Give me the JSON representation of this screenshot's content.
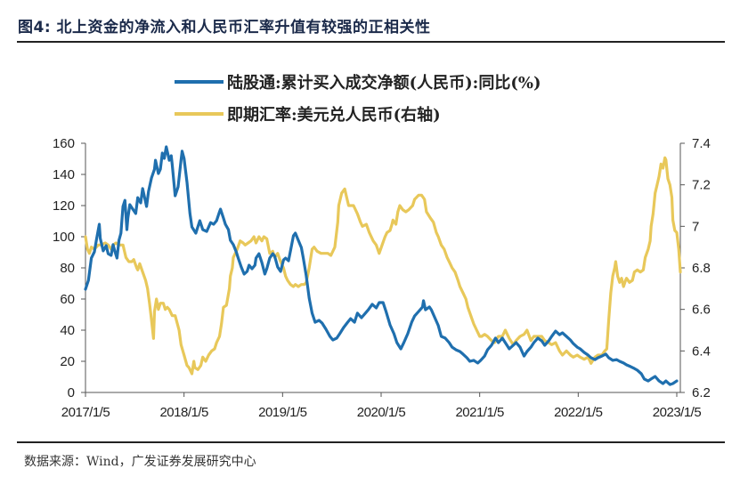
{
  "figure": {
    "title": "图4:  北上资金的净流入和人民币汇率升值有较强的正相关性",
    "source": "数据来源：Wind，广发证券发展研究中心"
  },
  "chart_data": {
    "type": "line",
    "title": "图4:  北上资金的净流入和人民币汇率升值有较强的正相关性",
    "xlabel": "",
    "ylabel": "",
    "x_tick_labels": [
      "2017/1/5",
      "2018/1/5",
      "2019/1/5",
      "2020/1/5",
      "2021/1/5",
      "2022/1/5",
      "2023/1/5"
    ],
    "x_tick_values": [
      2017,
      2018,
      2019,
      2020,
      2021,
      2022,
      2023
    ],
    "xlim": [
      2017,
      2023
    ],
    "y_left": {
      "ylim": [
        0,
        160
      ],
      "ticks": [
        "0",
        "20",
        "40",
        "60",
        "80",
        "100",
        "120",
        "140",
        "160"
      ],
      "tick_values": [
        0,
        20,
        40,
        60,
        80,
        100,
        120,
        140,
        160
      ]
    },
    "y_right": {
      "ylim": [
        6.2,
        7.4
      ],
      "ticks": [
        "6.2",
        "6.4",
        "6.6",
        "6.8",
        "7",
        "7.2",
        "7.4"
      ],
      "tick_values": [
        6.2,
        6.4,
        6.6,
        6.8,
        7.0,
        7.2,
        7.4
      ]
    },
    "grid": false,
    "legend_position": "top-center",
    "series": [
      {
        "name": "陆股通:累计买入成交净额(人民币):同比(%)",
        "axis": "left",
        "color": "#1f6fae",
        "x": [
          2017.0,
          2017.03,
          2017.06,
          2017.09,
          2017.11,
          2017.14,
          2017.15,
          2017.18,
          2017.21,
          2017.23,
          2017.26,
          2017.28,
          2017.3,
          2017.32,
          2017.34,
          2017.36,
          2017.38,
          2017.4,
          2017.42,
          2017.43,
          2017.45,
          2017.48,
          2017.51,
          2017.53,
          2017.56,
          2017.58,
          2017.6,
          2017.62,
          2017.64,
          2017.67,
          2017.7,
          2017.71,
          2017.74,
          2017.76,
          2017.78,
          2017.8,
          2017.82,
          2017.85,
          2017.87,
          2017.88,
          2017.91,
          2017.94,
          2017.97,
          2017.98,
          2018.0,
          2018.03,
          2018.06,
          2018.08,
          2018.12,
          2018.16,
          2018.19,
          2018.23,
          2018.27,
          2018.3,
          2018.33,
          2018.36,
          2018.37,
          2018.4,
          2018.42,
          2018.45,
          2018.47,
          2018.5,
          2018.53,
          2018.55,
          2018.58,
          2018.61,
          2018.64,
          2018.66,
          2018.69,
          2018.72,
          2018.73,
          2018.76,
          2018.79,
          2018.82,
          2018.84,
          2018.87,
          2018.9,
          2018.92,
          2018.95,
          2018.98,
          2019.01,
          2019.03,
          2019.06,
          2019.08,
          2019.11,
          2019.13,
          2019.16,
          2019.19,
          2019.21,
          2019.24,
          2019.27,
          2019.3,
          2019.33,
          2019.37,
          2019.4,
          2019.44,
          2019.48,
          2019.51,
          2019.55,
          2019.58,
          2019.62,
          2019.66,
          2019.69,
          2019.73,
          2019.76,
          2019.8,
          2019.84,
          2019.87,
          2019.91,
          2019.95,
          2019.98,
          2020.02,
          2020.05,
          2020.09,
          2020.13,
          2020.16,
          2020.2,
          2020.23,
          2020.27,
          2020.31,
          2020.34,
          2020.38,
          2020.42,
          2020.43,
          2020.45,
          2020.49,
          2020.51,
          2020.54,
          2020.58,
          2020.61,
          2020.65,
          2020.69,
          2020.72,
          2020.76,
          2020.8,
          2020.83,
          2020.87,
          2020.9,
          2020.94,
          2020.98,
          2021.01,
          2021.05,
          2021.08,
          2021.12,
          2021.16,
          2021.19,
          2021.23,
          2021.26,
          2021.3,
          2021.34,
          2021.37,
          2021.41,
          2021.45,
          2021.48,
          2021.52,
          2021.55,
          2021.59,
          2021.63,
          2021.66,
          2021.7,
          2021.73,
          2021.77,
          2021.81,
          2021.84,
          2021.88,
          2021.92,
          2021.95,
          2021.99,
          2022.02,
          2022.06,
          2022.1,
          2022.13,
          2022.17,
          2022.2,
          2022.24,
          2022.28,
          2022.31,
          2022.35,
          2022.39,
          2022.42,
          2022.46,
          2022.49,
          2022.53,
          2022.57,
          2022.6,
          2022.64,
          2022.67,
          2022.71,
          2022.75,
          2022.78,
          2022.82,
          2022.86,
          2022.89,
          2022.93,
          2022.96,
          2023.0
        ],
        "values": [
          66.3,
          72.0,
          86.3,
          90.3,
          97.7,
          108.0,
          98.9,
          90.9,
          94.3,
          89.1,
          88.0,
          94.9,
          90.3,
          86.3,
          97.7,
          102.3,
          119.4,
          123.4,
          104.6,
          112.0,
          120.6,
          117.7,
          114.9,
          125.1,
          121.7,
          130.9,
          125.1,
          119.4,
          129.1,
          137.7,
          143.4,
          149.1,
          140.6,
          143.4,
          153.7,
          150.3,
          157.7,
          149.1,
          152.0,
          146.3,
          126.3,
          132.0,
          149.1,
          154.9,
          150.3,
          134.9,
          114.9,
          106.3,
          102.3,
          110.3,
          104.6,
          103.4,
          109.1,
          108.0,
          110.3,
          116.0,
          117.7,
          112.0,
          108.0,
          104.6,
          97.7,
          94.9,
          90.3,
          86.3,
          80.6,
          76.0,
          77.7,
          81.7,
          79.4,
          81.7,
          86.3,
          89.1,
          83.4,
          76.0,
          79.4,
          86.3,
          89.1,
          87.4,
          80.6,
          77.7,
          85.1,
          86.3,
          84.6,
          90.9,
          100.6,
          102.3,
          97.7,
          93.1,
          86.3,
          74.9,
          60.6,
          50.9,
          45.1,
          46.3,
          44.6,
          40.6,
          36.0,
          33.7,
          34.9,
          37.7,
          41.7,
          45.1,
          47.4,
          45.1,
          50.9,
          48.0,
          50.9,
          53.1,
          56.6,
          54.3,
          57.7,
          57.7,
          52.0,
          43.4,
          37.7,
          32.0,
          28.0,
          32.0,
          37.7,
          45.1,
          49.1,
          52.0,
          54.9,
          58.9,
          53.1,
          54.9,
          53.1,
          48.6,
          42.9,
          36.0,
          34.9,
          32.0,
          29.1,
          27.4,
          26.3,
          24.6,
          22.3,
          20.0,
          20.6,
          18.9,
          20.6,
          23.4,
          27.4,
          30.3,
          34.9,
          32.0,
          34.9,
          32.0,
          28.0,
          30.3,
          32.0,
          29.1,
          23.4,
          26.3,
          29.1,
          32.0,
          34.9,
          33.1,
          30.3,
          33.1,
          36.0,
          39.4,
          37.1,
          38.3,
          36.0,
          33.7,
          31.4,
          29.1,
          28.0,
          25.7,
          24.0,
          22.3,
          21.1,
          22.3,
          23.4,
          24.6,
          22.3,
          20.6,
          21.1,
          20.0,
          18.9,
          17.7,
          16.6,
          15.4,
          14.3,
          12.0,
          8.6,
          7.4,
          9.1,
          10.3,
          7.4,
          5.7,
          7.4,
          5.1,
          5.7,
          7.4
        ]
      },
      {
        "name": "即期汇率:美元兑人民币(右轴)",
        "axis": "right",
        "color": "#e8c85a",
        "x": [
          2017.0,
          2017.02,
          2017.04,
          2017.06,
          2017.09,
          2017.13,
          2017.16,
          2017.2,
          2017.23,
          2017.26,
          2017.28,
          2017.31,
          2017.34,
          2017.36,
          2017.38,
          2017.41,
          2017.44,
          2017.47,
          2017.49,
          2017.52,
          2017.53,
          2017.55,
          2017.58,
          2017.61,
          2017.63,
          2017.65,
          2017.67,
          2017.69,
          2017.7,
          2017.72,
          2017.74,
          2017.76,
          2017.79,
          2017.81,
          2017.83,
          2017.85,
          2017.88,
          2017.91,
          2017.95,
          2017.97,
          2018.0,
          2018.03,
          2018.05,
          2018.08,
          2018.1,
          2018.11,
          2018.14,
          2018.17,
          2018.19,
          2018.22,
          2018.25,
          2018.28,
          2018.31,
          2018.33,
          2018.36,
          2018.38,
          2018.4,
          2018.43,
          2018.46,
          2018.47,
          2018.49,
          2018.5,
          2018.52,
          2018.54,
          2018.57,
          2018.6,
          2018.62,
          2018.65,
          2018.68,
          2018.71,
          2018.73,
          2018.76,
          2018.79,
          2018.81,
          2018.84,
          2018.87,
          2018.9,
          2018.92,
          2018.95,
          2018.98,
          2019.01,
          2019.03,
          2019.05,
          2019.08,
          2019.11,
          2019.13,
          2019.16,
          2019.19,
          2019.22,
          2019.24,
          2019.27,
          2019.3,
          2019.32,
          2019.35,
          2019.39,
          2019.42,
          2019.46,
          2019.49,
          2019.53,
          2019.56,
          2019.57,
          2019.6,
          2019.63,
          2019.65,
          2019.67,
          2019.69,
          2019.72,
          2019.76,
          2019.79,
          2019.81,
          2019.85,
          2019.88,
          2019.92,
          2019.95,
          2019.98,
          2020.01,
          2020.04,
          2020.06,
          2020.09,
          2020.11,
          2020.12,
          2020.15,
          2020.17,
          2020.19,
          2020.22,
          2020.25,
          2020.28,
          2020.32,
          2020.34,
          2020.38,
          2020.41,
          2020.44,
          2020.46,
          2020.5,
          2020.53,
          2020.56,
          2020.58,
          2020.61,
          2020.64,
          2020.67,
          2020.69,
          2020.72,
          2020.75,
          2020.78,
          2020.8,
          2020.83,
          2020.86,
          2020.88,
          2020.91,
          2020.94,
          2020.97,
          2021.0,
          2021.02,
          2021.05,
          2021.08,
          2021.12,
          2021.15,
          2021.19,
          2021.23,
          2021.26,
          2021.3,
          2021.34,
          2021.37,
          2021.41,
          2021.45,
          2021.48,
          2021.52,
          2021.55,
          2021.59,
          2021.63,
          2021.66,
          2021.7,
          2021.73,
          2021.77,
          2021.81,
          2021.84,
          2021.88,
          2021.92,
          2021.95,
          2021.99,
          2022.02,
          2022.06,
          2022.1,
          2022.13,
          2022.17,
          2022.2,
          2022.24,
          2022.27,
          2022.29,
          2022.31,
          2022.33,
          2022.35,
          2022.37,
          2022.38,
          2022.4,
          2022.42,
          2022.44,
          2022.46,
          2022.48,
          2022.49,
          2022.52,
          2022.55,
          2022.57,
          2022.6,
          2022.63,
          2022.66,
          2022.68,
          2022.71,
          2022.73,
          2022.74,
          2022.76,
          2022.78,
          2022.8,
          2022.82,
          2022.84,
          2022.86,
          2022.88,
          2022.89,
          2022.91,
          2022.93,
          2022.95,
          2022.96,
          2022.98,
          2023.0,
          2023.02,
          2023.04
        ],
        "values": [
          6.95,
          6.89,
          6.87,
          6.9,
          6.89,
          6.91,
          6.91,
          6.92,
          6.91,
          6.89,
          6.91,
          6.92,
          6.91,
          6.91,
          6.91,
          6.85,
          6.83,
          6.83,
          6.84,
          6.8,
          6.79,
          6.82,
          6.78,
          6.74,
          6.7,
          6.63,
          6.55,
          6.46,
          6.59,
          6.65,
          6.6,
          6.63,
          6.63,
          6.6,
          6.61,
          6.6,
          6.57,
          6.57,
          6.5,
          6.43,
          6.38,
          6.33,
          6.32,
          6.29,
          6.35,
          6.32,
          6.31,
          6.33,
          6.37,
          6.35,
          6.38,
          6.4,
          6.41,
          6.44,
          6.47,
          6.53,
          6.61,
          6.62,
          6.7,
          6.76,
          6.8,
          6.85,
          6.87,
          6.89,
          6.93,
          6.92,
          6.91,
          6.92,
          6.93,
          6.95,
          6.92,
          6.95,
          6.93,
          6.95,
          6.94,
          6.87,
          6.88,
          6.85,
          6.87,
          6.83,
          6.8,
          6.76,
          6.74,
          6.72,
          6.71,
          6.72,
          6.71,
          6.72,
          6.72,
          6.73,
          6.8,
          6.89,
          6.9,
          6.88,
          6.87,
          6.87,
          6.87,
          6.86,
          6.9,
          7.02,
          7.1,
          7.16,
          7.18,
          7.14,
          7.1,
          7.1,
          7.1,
          7.06,
          7.02,
          7.0,
          7.01,
          6.97,
          6.93,
          6.91,
          6.87,
          6.91,
          6.95,
          6.97,
          6.98,
          7.01,
          7.03,
          7.01,
          7.07,
          7.1,
          7.08,
          7.07,
          7.08,
          7.1,
          7.13,
          7.15,
          7.15,
          7.13,
          7.07,
          7.04,
          7.02,
          6.97,
          6.95,
          6.91,
          6.89,
          6.85,
          6.83,
          6.8,
          6.78,
          6.74,
          6.71,
          6.68,
          6.65,
          6.61,
          6.57,
          6.53,
          6.5,
          6.47,
          6.47,
          6.48,
          6.47,
          6.45,
          6.44,
          6.47,
          6.47,
          6.5,
          6.46,
          6.43,
          6.45,
          6.47,
          6.48,
          6.5,
          6.45,
          6.47,
          6.47,
          6.47,
          6.45,
          6.44,
          6.43,
          6.44,
          6.4,
          6.38,
          6.4,
          6.38,
          6.37,
          6.38,
          6.37,
          6.36,
          6.37,
          6.34,
          6.37,
          6.38,
          6.38,
          6.4,
          6.41,
          6.55,
          6.68,
          6.76,
          6.8,
          6.83,
          6.76,
          6.73,
          6.75,
          6.71,
          6.74,
          6.75,
          6.73,
          6.74,
          6.78,
          6.79,
          6.78,
          6.79,
          6.85,
          6.89,
          6.93,
          7.0,
          7.06,
          7.16,
          7.2,
          7.24,
          7.3,
          7.28,
          7.33,
          7.32,
          7.23,
          7.2,
          7.14,
          7.03,
          6.98,
          6.97,
          6.89,
          6.78
        ]
      }
    ]
  }
}
